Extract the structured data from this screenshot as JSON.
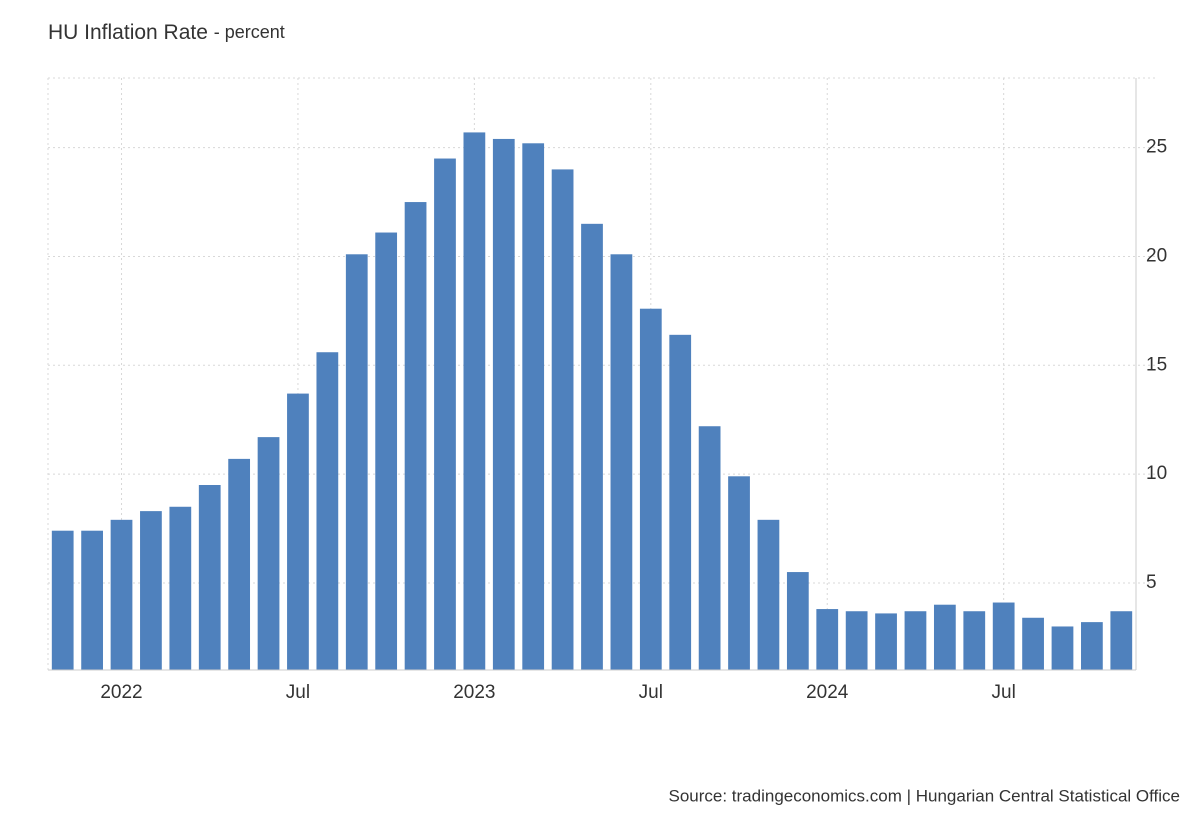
{
  "chart_data": {
    "type": "bar",
    "title": "HU Inflation Rate",
    "subtitle": "- percent",
    "source": "Source: tradingeconomics.com | Hungarian Central Statistical Office",
    "categories": [
      null,
      null,
      "2022",
      null,
      null,
      null,
      null,
      null,
      "Jul",
      null,
      null,
      null,
      null,
      null,
      "2023",
      null,
      null,
      null,
      null,
      null,
      "Jul",
      null,
      null,
      null,
      null,
      null,
      "2024",
      null,
      null,
      null,
      null,
      null,
      "Jul",
      null,
      null,
      null,
      null
    ],
    "values": [
      7.4,
      7.4,
      7.9,
      8.3,
      8.5,
      9.5,
      10.7,
      11.7,
      13.7,
      15.6,
      20.1,
      21.1,
      22.5,
      24.5,
      25.7,
      25.4,
      25.2,
      24.0,
      21.5,
      20.1,
      17.6,
      16.4,
      12.2,
      9.9,
      7.9,
      5.5,
      3.8,
      3.7,
      3.6,
      3.7,
      4.0,
      3.7,
      4.1,
      3.4,
      3.0,
      3.2,
      3.7
    ],
    "color": "#4f81bd",
    "ylim": [
      1,
      28.2
    ],
    "yticks": [
      5,
      10,
      15,
      20,
      25
    ],
    "grid": true
  }
}
